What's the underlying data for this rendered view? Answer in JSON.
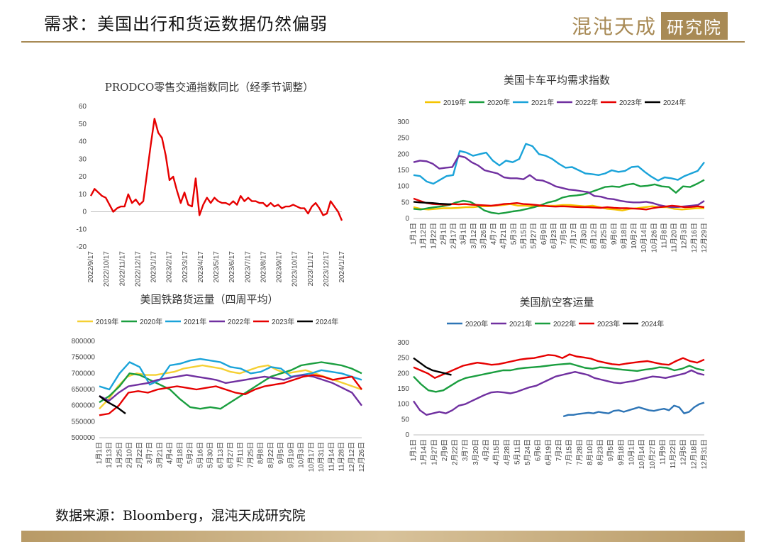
{
  "header": {
    "title": "需求：美国出行和货运数据仍然偏弱",
    "brand_text": "混沌天成",
    "brand_box": "研究院"
  },
  "source": "数据来源：Bloomberg，混沌天成研究院",
  "chart_data": [
    {
      "id": "prodco",
      "type": "line",
      "title": "PRODCO零售交通指数同比（经季节调整）",
      "ylim": [
        -20,
        60
      ],
      "yticks": [
        -20,
        -10,
        0,
        10,
        20,
        30,
        40,
        50,
        60
      ],
      "xticks": [
        "2022/9/17",
        "2022/10/17",
        "2022/11/17",
        "2022/12/17",
        "2023/1/17",
        "2023/2/17",
        "2023/3/17",
        "2023/4/17",
        "2023/5/17",
        "2023/6/17",
        "2023/7/17",
        "2023/8/17",
        "2023/9/17",
        "2023/10/17",
        "2023/11/17",
        "2023/12/17",
        "2024/1/17"
      ],
      "legend": "none",
      "series": [
        {
          "color": "#e60000",
          "values": [
            9,
            13,
            11,
            9,
            8,
            4,
            0,
            2,
            3,
            3,
            10,
            5,
            7,
            4,
            6,
            22,
            38,
            53,
            45,
            42,
            32,
            18,
            20,
            12,
            5,
            11,
            4,
            3,
            19,
            -2,
            4,
            8,
            5,
            8,
            6,
            5,
            5,
            4,
            6,
            4,
            9,
            6,
            8,
            6,
            6,
            5,
            5,
            3,
            5,
            3,
            4,
            2,
            3,
            3,
            4,
            3,
            2,
            2,
            -1,
            3,
            5,
            2,
            -2,
            -1,
            6,
            3,
            0,
            -5
          ]
        }
      ]
    },
    {
      "id": "truck",
      "type": "line",
      "title": "美国卡车平均需求指数",
      "ylim": [
        0,
        300
      ],
      "yticks": [
        0,
        50,
        100,
        150,
        200,
        250,
        300
      ],
      "xticks": [
        "1月1日",
        "1月12日",
        "1月22日",
        "2月1日",
        "2月17日",
        "3月1日",
        "3月12日",
        "3月26日",
        "4月7日",
        "4月21日",
        "5月3日",
        "5月15日",
        "5月27日",
        "6月9日",
        "6月23日",
        "7月5日",
        "7月17日",
        "7月30日",
        "8月12日",
        "8月25日",
        "9月6日",
        "9月18日",
        "10月2日",
        "10月14日",
        "10月26日",
        "11月8日",
        "11月20日",
        "12月3日",
        "12月16日",
        "12月29日"
      ],
      "legend": "top",
      "series": [
        {
          "name": "2019年",
          "color": "#f5c400",
          "values": [
            35,
            30,
            28,
            30,
            32,
            32,
            33,
            35,
            35,
            38,
            38,
            40,
            42,
            45,
            40,
            40,
            38,
            38,
            40,
            40,
            42,
            42,
            40,
            38,
            40,
            35,
            30,
            28,
            25,
            30,
            32,
            35,
            38,
            35,
            35,
            30,
            28,
            30,
            32,
            32
          ]
        },
        {
          "name": "2020年",
          "color": "#1a9e3f",
          "values": [
            30,
            28,
            32,
            35,
            38,
            42,
            50,
            55,
            52,
            40,
            25,
            18,
            15,
            18,
            22,
            25,
            30,
            35,
            42,
            50,
            55,
            65,
            70,
            72,
            75,
            82,
            90,
            98,
            100,
            98,
            105,
            108,
            100,
            102,
            106,
            100,
            98,
            80,
            100,
            98,
            108,
            120
          ]
        },
        {
          "name": "2021年",
          "color": "#1aa3d9",
          "values": [
            135,
            132,
            115,
            108,
            120,
            132,
            135,
            210,
            205,
            195,
            200,
            205,
            180,
            165,
            180,
            175,
            185,
            232,
            225,
            200,
            195,
            185,
            170,
            158,
            160,
            150,
            140,
            138,
            135,
            140,
            150,
            145,
            148,
            160,
            162,
            145,
            130,
            118,
            128,
            125,
            120,
            132,
            140,
            148,
            175
          ]
        },
        {
          "name": "2022年",
          "color": "#7030a0",
          "values": [
            175,
            180,
            178,
            170,
            155,
            158,
            160,
            195,
            190,
            175,
            165,
            150,
            145,
            140,
            128,
            125,
            125,
            122,
            135,
            120,
            118,
            110,
            100,
            95,
            90,
            88,
            85,
            82,
            70,
            68,
            62,
            60,
            55,
            52,
            50,
            50,
            52,
            48,
            42,
            38,
            35,
            36,
            38,
            40,
            42,
            55
          ]
        },
        {
          "name": "2023年",
          "color": "#e60000",
          "values": [
            62,
            55,
            48,
            45,
            44,
            43,
            45,
            44,
            45,
            43,
            42,
            41,
            40,
            42,
            45,
            46,
            48,
            45,
            44,
            42,
            40,
            38,
            37,
            38,
            37,
            36,
            35,
            35,
            34,
            33,
            35,
            33,
            32,
            32,
            31,
            30,
            28,
            32,
            35,
            37,
            40,
            38,
            35,
            36,
            38,
            35
          ]
        },
        {
          "name": "2024年",
          "color": "#000000",
          "values": [
            52,
            50,
            49,
            48,
            46,
            45,
            44
          ]
        }
      ]
    },
    {
      "id": "rail",
      "type": "line",
      "title": "美国铁路货运量（四周平均）",
      "ylim": [
        500000,
        800000
      ],
      "yticks": [
        500000,
        550000,
        600000,
        650000,
        700000,
        750000,
        800000
      ],
      "xticks": [
        "1月1日",
        "1月13日",
        "1月25日",
        "2月10日",
        "2月22日",
        "3月7日",
        "3月21日",
        "4月4日",
        "4月18日",
        "5月2日",
        "5月16日",
        "5月30日",
        "6月13日",
        "6月27日",
        "7月11日",
        "7月25日",
        "8月8日",
        "8月22日",
        "9月5日",
        "9月19日",
        "10月3日",
        "10月17日",
        "10月31日",
        "11月14日",
        "11月28日",
        "12月12日",
        "12月26日"
      ],
      "legend": "top",
      "series": [
        {
          "name": "2019年",
          "color": "#f5d033",
          "values": [
            590000,
            620000,
            660000,
            690000,
            700000,
            695000,
            695000,
            700000,
            705000,
            715000,
            720000,
            725000,
            720000,
            715000,
            705000,
            700000,
            710000,
            720000,
            725000,
            710000,
            700000,
            705000,
            710000,
            700000,
            690000,
            680000,
            670000,
            660000,
            650000
          ]
        },
        {
          "name": "2020年",
          "color": "#1a9e3f",
          "values": [
            610000,
            630000,
            660000,
            700000,
            695000,
            680000,
            665000,
            650000,
            620000,
            595000,
            590000,
            595000,
            590000,
            610000,
            630000,
            650000,
            670000,
            690000,
            700000,
            710000,
            725000,
            730000,
            735000,
            730000,
            725000,
            715000,
            700000
          ]
        },
        {
          "name": "2021年",
          "color": "#1aa3d9",
          "values": [
            660000,
            650000,
            700000,
            735000,
            720000,
            665000,
            680000,
            725000,
            730000,
            740000,
            745000,
            740000,
            735000,
            720000,
            715000,
            700000,
            705000,
            720000,
            715000,
            690000,
            695000,
            700000,
            710000,
            705000,
            700000,
            690000,
            680000
          ]
        },
        {
          "name": "2022年",
          "color": "#7030a0",
          "values": [
            630000,
            615000,
            640000,
            660000,
            665000,
            670000,
            680000,
            685000,
            690000,
            695000,
            690000,
            685000,
            680000,
            670000,
            675000,
            680000,
            685000,
            690000,
            685000,
            680000,
            690000,
            695000,
            690000,
            680000,
            670000,
            655000,
            640000,
            600000
          ]
        },
        {
          "name": "2023年",
          "color": "#e60000",
          "values": [
            570000,
            575000,
            600000,
            640000,
            645000,
            640000,
            650000,
            655000,
            660000,
            655000,
            650000,
            655000,
            660000,
            650000,
            640000,
            635000,
            650000,
            660000,
            665000,
            670000,
            680000,
            690000,
            695000,
            690000,
            680000,
            685000,
            690000,
            650000
          ]
        },
        {
          "name": "2024年",
          "color": "#000000",
          "values": [
            630000,
            610000,
            595000,
            575000
          ]
        }
      ]
    },
    {
      "id": "air",
      "type": "line",
      "title": "美国航空客运量",
      "ylim": [
        0,
        300
      ],
      "yticks": [
        0,
        50,
        100,
        150,
        200,
        250,
        300
      ],
      "xticks": [
        "1月1日",
        "1月14日",
        "1月27日",
        "2月9日",
        "2月22日",
        "3月7日",
        "3月20日",
        "4月2日",
        "4月15日",
        "4月28日",
        "5月11日",
        "5月24日",
        "6月6日",
        "6月19日",
        "7月2日",
        "7月15日",
        "7月28日",
        "8月10日",
        "8月23日",
        "9月5日",
        "9月18日",
        "10月1日",
        "10月14日",
        "10月27日",
        "11月9日",
        "11月22日",
        "12月5日",
        "12月18日",
        "12月31日"
      ],
      "legend": "top",
      "series": [
        {
          "name": "2020年",
          "color": "#2e75b6",
          "start": 0.515,
          "values": [
            60,
            65,
            65,
            68,
            70,
            72,
            70,
            75,
            72,
            70,
            78,
            80,
            75,
            80,
            85,
            90,
            85,
            80,
            78,
            82,
            85,
            80,
            95,
            90,
            70,
            75,
            90,
            100,
            105
          ]
        },
        {
          "name": "2021年",
          "color": "#7030a0",
          "values": [
            110,
            80,
            65,
            70,
            75,
            70,
            80,
            95,
            100,
            110,
            120,
            130,
            138,
            140,
            138,
            135,
            140,
            148,
            155,
            160,
            170,
            180,
            190,
            195,
            200,
            205,
            200,
            195,
            185,
            180,
            175,
            170,
            168,
            172,
            175,
            180,
            185,
            190,
            188,
            185,
            190,
            195,
            200,
            210,
            200,
            195
          ]
        },
        {
          "name": "2022年",
          "color": "#1a9e3f",
          "values": [
            190,
            165,
            145,
            140,
            145,
            160,
            175,
            185,
            190,
            195,
            200,
            205,
            210,
            210,
            215,
            218,
            220,
            222,
            225,
            228,
            230,
            232,
            225,
            218,
            215,
            220,
            218,
            215,
            212,
            210,
            208,
            212,
            215,
            220,
            218,
            210,
            215,
            225,
            215,
            210
          ]
        },
        {
          "name": "2023年",
          "color": "#e60000",
          "values": [
            220,
            210,
            200,
            185,
            195,
            205,
            215,
            225,
            230,
            235,
            232,
            228,
            230,
            235,
            240,
            245,
            248,
            250,
            255,
            260,
            258,
            250,
            262,
            255,
            252,
            248,
            240,
            235,
            230,
            228,
            232,
            235,
            238,
            240,
            235,
            230,
            228,
            240,
            250,
            240,
            235,
            245
          ]
        },
        {
          "name": "2024年",
          "color": "#000000",
          "values": [
            250,
            235,
            220,
            210,
            205,
            200,
            195
          ]
        }
      ]
    }
  ]
}
